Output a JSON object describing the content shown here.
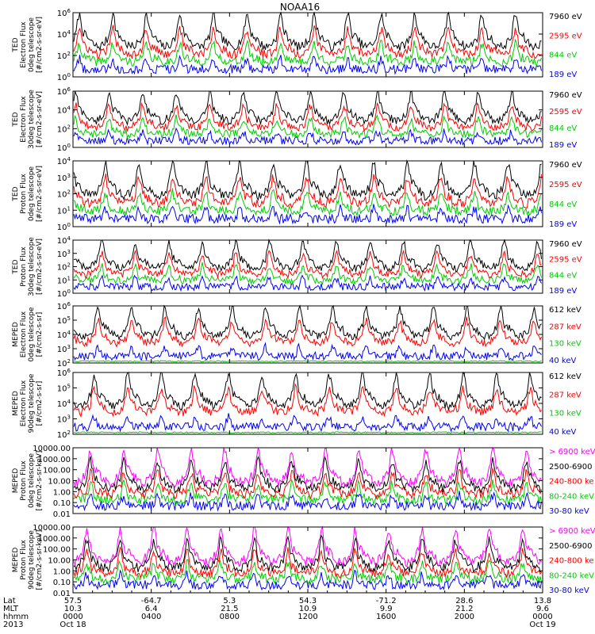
{
  "title": "NOAA16",
  "chart_data": [
    {
      "type": "line",
      "y_scale": "log",
      "ylim": [
        1,
        1000000
      ],
      "ylabel": [
        "TED",
        "Electron Flux",
        "0deg telescope",
        "[#/cm2-s-sr-eV]"
      ],
      "y_ticks": [
        "10^0",
        "10^2",
        "10^4",
        "10^6"
      ],
      "series": [
        {
          "name": "7960 eV",
          "color": "#000000"
        },
        {
          "name": "2595 eV",
          "color": "#ff0000"
        },
        {
          "name": "844 eV",
          "color": "#00cc00"
        },
        {
          "name": "189 eV",
          "color": "#0000ff"
        }
      ]
    },
    {
      "type": "line",
      "y_scale": "log",
      "ylim": [
        1,
        1000000
      ],
      "ylabel": [
        "TED",
        "Electron Flux",
        "30deg telescope",
        "[#/cm2-s-sr-eV]"
      ],
      "y_ticks": [
        "10^0",
        "10^2",
        "10^4",
        "10^6"
      ],
      "series": [
        {
          "name": "7960 eV",
          "color": "#000000"
        },
        {
          "name": "2595 eV",
          "color": "#ff0000"
        },
        {
          "name": "844 eV",
          "color": "#00cc00"
        },
        {
          "name": "189 eV",
          "color": "#0000ff"
        }
      ]
    },
    {
      "type": "line",
      "y_scale": "log",
      "ylim": [
        1,
        10000
      ],
      "ylabel": [
        "TED",
        "Proton Flux",
        "0deg telescope",
        "[#/cm2-s-sr-eV]"
      ],
      "y_ticks": [
        "10^0",
        "10^1",
        "10^2",
        "10^3",
        "10^4"
      ],
      "series": [
        {
          "name": "7960 eV",
          "color": "#000000"
        },
        {
          "name": "2595 eV",
          "color": "#ff0000"
        },
        {
          "name": "844 eV",
          "color": "#00cc00"
        },
        {
          "name": "189 eV",
          "color": "#0000ff"
        }
      ]
    },
    {
      "type": "line",
      "y_scale": "log",
      "ylim": [
        1,
        10000
      ],
      "ylabel": [
        "TED",
        "Proton Flux",
        "30deg telescope",
        "[#/cm2-s-sr-eV]"
      ],
      "y_ticks": [
        "10^0",
        "10^1",
        "10^2",
        "10^3",
        "10^4"
      ],
      "series": [
        {
          "name": "7960 eV",
          "color": "#000000"
        },
        {
          "name": "2595 eV",
          "color": "#ff0000"
        },
        {
          "name": "844 eV",
          "color": "#00cc00"
        },
        {
          "name": "189 eV",
          "color": "#0000ff"
        }
      ]
    },
    {
      "type": "line",
      "y_scale": "log",
      "ylim": [
        100,
        1000000
      ],
      "ylabel": [
        "MEPED",
        "Electron Flux",
        "0deg telescope",
        "[#/cm2-s-sr]"
      ],
      "y_ticks": [
        "10^2",
        "10^3",
        "10^4",
        "10^5",
        "10^6"
      ],
      "series": [
        {
          "name": "612 keV",
          "color": "#000000"
        },
        {
          "name": "287 keV",
          "color": "#ff0000"
        },
        {
          "name": "130 keV",
          "color": "#00cc00"
        },
        {
          "name": "40 keV",
          "color": "#0000ff"
        }
      ]
    },
    {
      "type": "line",
      "y_scale": "log",
      "ylim": [
        100,
        1000000
      ],
      "ylabel": [
        "MEPED",
        "Electron Flux",
        "90deg telescope",
        "[#/cm2-s-sr]"
      ],
      "y_ticks": [
        "10^2",
        "10^3",
        "10^4",
        "10^5",
        "10^6"
      ],
      "series": [
        {
          "name": "612 keV",
          "color": "#000000"
        },
        {
          "name": "287 keV",
          "color": "#ff0000"
        },
        {
          "name": "130 keV",
          "color": "#00cc00"
        },
        {
          "name": "40 keV",
          "color": "#0000ff"
        }
      ]
    },
    {
      "type": "line",
      "y_scale": "log",
      "ylim": [
        0.01,
        10000
      ],
      "ylabel": [
        "MEPED",
        "Proton Flux",
        "0deg telescope",
        "[#/cm2-s-sr-keV]"
      ],
      "y_ticks": [
        "0.01",
        "0.10",
        "1.00",
        "10.00",
        "100.00",
        "1000.00",
        "10000.00"
      ],
      "series": [
        {
          "name": "> 6900 keV",
          "color": "#ff00ff"
        },
        {
          "name": "2500-6900",
          "color": "#000000"
        },
        {
          "name": "240-800 ke",
          "color": "#ff0000"
        },
        {
          "name": "80-240 keV",
          "color": "#00cc00"
        },
        {
          "name": "30-80 keV",
          "color": "#0000ff"
        }
      ]
    },
    {
      "type": "line",
      "y_scale": "log",
      "ylim": [
        0.01,
        10000
      ],
      "ylabel": [
        "MEPED",
        "Proton Flux",
        "90deg telescope",
        "[#/cm2-s-sr-keV]"
      ],
      "y_ticks": [
        "0.01",
        "0.10",
        "1.00",
        "10.00",
        "100.00",
        "1000.00",
        "10000.00"
      ],
      "series": [
        {
          "name": "> 6900 keV",
          "color": "#ff00ff"
        },
        {
          "name": "2500-6900",
          "color": "#000000"
        },
        {
          "name": "240-800 ke",
          "color": "#ff0000"
        },
        {
          "name": "80-240 keV",
          "color": "#00cc00"
        },
        {
          "name": "30-80 keV",
          "color": "#0000ff"
        }
      ]
    }
  ],
  "x_axis": {
    "row_labels": [
      "Lat",
      "MLT",
      "hhmm",
      "2013"
    ],
    "ticks": [
      {
        "lat": "57.5",
        "mlt": "10.3",
        "hhmm": "0000",
        "date": "Oct 18"
      },
      {
        "lat": "-64.7",
        "mlt": "6.4",
        "hhmm": "0400",
        "date": ""
      },
      {
        "lat": "5.3",
        "mlt": "21.5",
        "hhmm": "0800",
        "date": ""
      },
      {
        "lat": "54.3",
        "mlt": "10.9",
        "hhmm": "1200",
        "date": ""
      },
      {
        "lat": "-71.2",
        "mlt": "9.9",
        "hhmm": "1600",
        "date": ""
      },
      {
        "lat": "28.6",
        "mlt": "21.2",
        "hhmm": "2000",
        "date": ""
      },
      {
        "lat": "13.8",
        "mlt": "9.6",
        "hhmm": "0000",
        "date": "Oct 19"
      }
    ]
  }
}
